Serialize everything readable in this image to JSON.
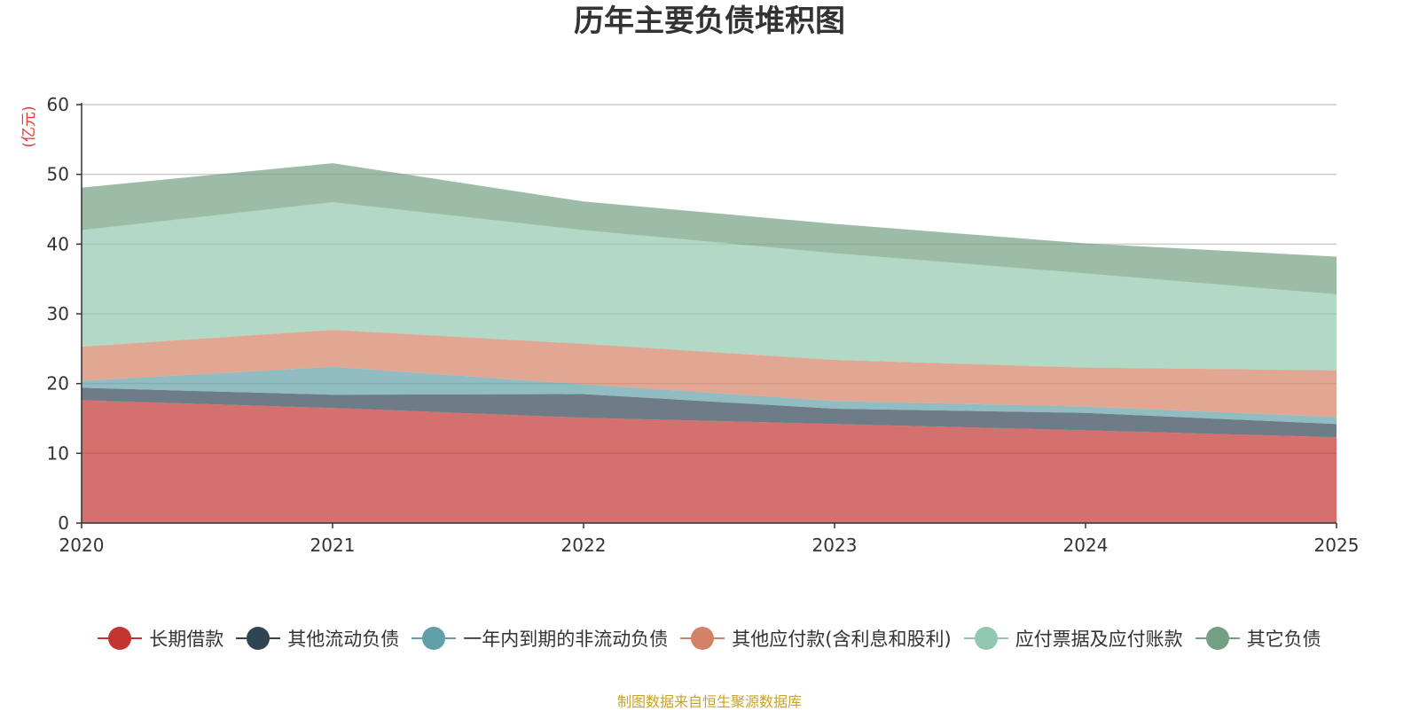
{
  "chart_data": {
    "type": "area",
    "stacked": true,
    "title": "历年主要负债堆积图",
    "unit": "(亿元)",
    "x": [
      "2020",
      "2021",
      "2022",
      "2023",
      "2024",
      "2025"
    ],
    "ylim": [
      0,
      60
    ],
    "yticks": [
      0,
      10,
      20,
      30,
      40,
      50,
      60
    ],
    "grid": true,
    "legend_position": "bottom",
    "series": [
      {
        "name": "长期借款",
        "color": "#c23531",
        "values": [
          17.6,
          16.5,
          15.1,
          14.2,
          13.3,
          12.3
        ]
      },
      {
        "name": "其他流动负债",
        "color": "#2f4554",
        "values": [
          1.8,
          1.9,
          3.4,
          2.2,
          2.5,
          1.9
        ]
      },
      {
        "name": "一年内到期的非流动负债",
        "color": "#61a0a8",
        "values": [
          1.0,
          4.0,
          1.4,
          1.1,
          0.9,
          1.0
        ]
      },
      {
        "name": "其他应付款(含利息和股利)",
        "color": "#d48265",
        "values": [
          4.9,
          5.3,
          5.8,
          5.9,
          5.6,
          6.7
        ]
      },
      {
        "name": "应付票据及应付账款",
        "color": "#91c7ae",
        "values": [
          16.7,
          18.3,
          16.3,
          15.3,
          13.5,
          10.9
        ]
      },
      {
        "name": "其它负债",
        "color": "#749f83",
        "values": [
          6.1,
          5.6,
          4.1,
          4.2,
          4.3,
          5.4
        ]
      }
    ]
  },
  "footer": {
    "source": "制图数据来自恒生聚源数据库",
    "source_color": "#c9a227"
  }
}
